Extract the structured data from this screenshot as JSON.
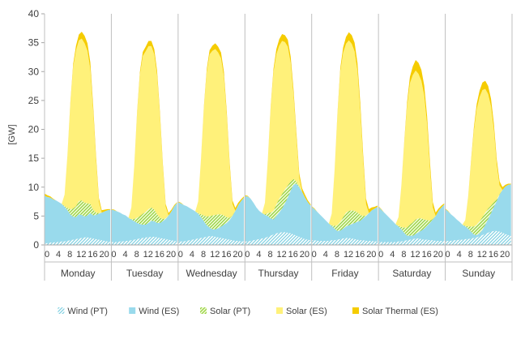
{
  "chart_data": {
    "type": "area",
    "ylabel": "[GW]",
    "ylim": [
      0,
      40
    ],
    "yticks": [
      0,
      5,
      10,
      15,
      20,
      25,
      30,
      35,
      40
    ],
    "x_hour_ticks": [
      "0",
      "4",
      "8",
      "12",
      "16",
      "20"
    ],
    "x_hour_tick_values": [
      0,
      4,
      8,
      12,
      16,
      20
    ],
    "days": [
      "Monday",
      "Tuesday",
      "Wednesday",
      "Thursday",
      "Friday",
      "Saturday",
      "Sunday"
    ],
    "grid": false,
    "stacked": true,
    "legend_position": "bottom",
    "colors": {
      "wind_pt": "#a8e0ea",
      "wind_es": "#99daec",
      "solar_pt": "#c8e88a",
      "solar_es": "#fff17a",
      "solar_thermal_es": "#f5cc00",
      "axis": "#a6a6a6"
    },
    "series": [
      {
        "name": "Wind (PT)",
        "pattern": "hatched",
        "values": [
          [
            0.3,
            0.3,
            0.4,
            0.4,
            0.5,
            0.5,
            0.6,
            0.6,
            0.7,
            0.8,
            0.9,
            1.0,
            1.1,
            1.2,
            1.3,
            1.3,
            1.2,
            1.1,
            1.0,
            0.9,
            0.8,
            0.7,
            0.6,
            0.5
          ],
          [
            0.5,
            0.5,
            0.5,
            0.6,
            0.6,
            0.7,
            0.7,
            0.8,
            0.9,
            1.0,
            1.1,
            1.2,
            1.3,
            1.3,
            1.4,
            1.4,
            1.3,
            1.2,
            1.1,
            1.0,
            0.9,
            0.8,
            0.7,
            0.6
          ],
          [
            0.6,
            0.6,
            0.6,
            0.7,
            0.8,
            0.9,
            1.0,
            1.1,
            1.2,
            1.3,
            1.4,
            1.5,
            1.5,
            1.4,
            1.3,
            1.2,
            1.1,
            1.0,
            0.9,
            0.8,
            0.7,
            0.7,
            0.6,
            0.6
          ],
          [
            0.6,
            0.6,
            0.7,
            0.8,
            0.9,
            1.0,
            1.1,
            1.2,
            1.4,
            1.6,
            1.8,
            2.0,
            2.1,
            2.2,
            2.2,
            2.1,
            2.0,
            1.8,
            1.6,
            1.4,
            1.2,
            1.0,
            0.9,
            0.8
          ],
          [
            0.8,
            0.8,
            0.7,
            0.7,
            0.7,
            0.7,
            0.7,
            0.8,
            0.8,
            0.9,
            1.0,
            1.1,
            1.2,
            1.2,
            1.1,
            1.0,
            0.9,
            0.8,
            0.8,
            0.7,
            0.7,
            0.7,
            0.6,
            0.6
          ],
          [
            0.6,
            0.5,
            0.5,
            0.5,
            0.5,
            0.5,
            0.5,
            0.6,
            0.6,
            0.7,
            0.8,
            0.9,
            1.0,
            1.1,
            1.1,
            1.0,
            0.9,
            0.9,
            0.8,
            0.8,
            0.7,
            0.7,
            0.7,
            0.7
          ],
          [
            0.7,
            0.7,
            0.7,
            0.8,
            0.8,
            0.9,
            0.9,
            1.0,
            1.0,
            1.1,
            1.2,
            1.3,
            1.5,
            1.7,
            1.9,
            2.1,
            2.3,
            2.4,
            2.4,
            2.3,
            2.1,
            1.9,
            1.7,
            1.5
          ]
        ]
      },
      {
        "name": "Wind (ES)",
        "pattern": "solid",
        "values": [
          [
            8.2,
            8.0,
            7.8,
            7.5,
            7.2,
            6.9,
            6.5,
            6.0,
            5.3,
            4.5,
            4.0,
            3.8,
            4.2,
            4.0,
            3.6,
            3.8,
            4.3,
            4.0,
            4.2,
            4.5,
            4.8,
            5.1,
            5.4,
            5.6
          ],
          [
            5.6,
            5.5,
            5.3,
            5.0,
            4.7,
            4.4,
            4.0,
            3.6,
            3.2,
            2.8,
            2.5,
            2.3,
            2.2,
            2.5,
            2.8,
            2.7,
            2.5,
            2.6,
            3.0,
            3.5,
            4.2,
            5.0,
            6.0,
            6.7
          ],
          [
            6.8,
            6.6,
            6.3,
            6.0,
            5.6,
            5.2,
            4.8,
            4.3,
            3.6,
            2.8,
            2.0,
            1.5,
            1.2,
            1.3,
            1.6,
            2.0,
            2.4,
            2.8,
            3.4,
            4.2,
            5.2,
            6.2,
            7.0,
            7.6
          ],
          [
            7.8,
            7.8,
            7.3,
            6.5,
            5.6,
            4.9,
            4.4,
            4.0,
            3.6,
            3.0,
            2.6,
            3.0,
            3.5,
            4.1,
            5.0,
            6.1,
            7.4,
            8.6,
            9.0,
            8.6,
            8.0,
            7.2,
            6.5,
            6.0
          ],
          [
            5.8,
            5.4,
            5.0,
            4.5,
            4.0,
            3.5,
            3.0,
            2.5,
            2.0,
            1.5,
            1.5,
            1.7,
            2.0,
            2.2,
            2.5,
            2.8,
            3.1,
            3.4,
            3.8,
            4.3,
            4.8,
            5.3,
            5.7,
            6.0
          ],
          [
            6.0,
            5.6,
            5.1,
            4.6,
            4.1,
            3.6,
            3.1,
            2.6,
            2.1,
            1.4,
            0.8,
            0.7,
            0.6,
            0.8,
            1.1,
            1.5,
            1.9,
            2.4,
            3.0,
            3.6,
            4.3,
            5.2,
            5.8,
            6.3
          ],
          [
            5.5,
            5.1,
            4.6,
            4.1,
            3.6,
            3.1,
            2.6,
            2.2,
            1.8,
            1.2,
            0.6,
            0.4,
            0.5,
            0.9,
            1.6,
            2.4,
            3.2,
            4.2,
            5.2,
            6.4,
            7.4,
            8.2,
            8.7,
            9.0
          ]
        ]
      },
      {
        "name": "Solar (PT)",
        "pattern": "hatched",
        "values": [
          [
            0,
            0,
            0,
            0,
            0,
            0,
            0,
            0.1,
            0.4,
            0.9,
            1.4,
            1.9,
            2.3,
            2.5,
            2.4,
            2.1,
            1.6,
            1.0,
            0.4,
            0.1,
            0,
            0,
            0,
            0
          ],
          [
            0,
            0,
            0,
            0,
            0,
            0,
            0,
            0.1,
            0.4,
            0.9,
            1.4,
            1.9,
            2.2,
            2.4,
            2.3,
            2.0,
            1.5,
            0.9,
            0.4,
            0.1,
            0,
            0,
            0,
            0
          ],
          [
            0,
            0,
            0,
            0,
            0,
            0,
            0,
            0.1,
            0.5,
            1.0,
            1.5,
            2.0,
            2.4,
            2.5,
            2.4,
            2.1,
            1.6,
            1.0,
            0.4,
            0.1,
            0,
            0,
            0,
            0
          ],
          [
            0,
            0,
            0,
            0,
            0,
            0,
            0,
            0.1,
            0.5,
            1.0,
            1.5,
            2.0,
            2.4,
            2.5,
            2.4,
            2.1,
            1.6,
            1.0,
            0.4,
            0.1,
            0,
            0,
            0,
            0
          ],
          [
            0,
            0,
            0,
            0,
            0,
            0,
            0,
            0.1,
            0.5,
            1.0,
            1.5,
            2.0,
            2.4,
            2.5,
            2.4,
            2.1,
            1.6,
            1.0,
            0.4,
            0.1,
            0,
            0,
            0,
            0
          ],
          [
            0,
            0,
            0,
            0,
            0,
            0,
            0,
            0.1,
            0.4,
            0.9,
            1.4,
            1.9,
            2.3,
            2.5,
            2.4,
            2.1,
            1.6,
            1.0,
            0.4,
            0.1,
            0,
            0,
            0,
            0
          ],
          [
            0,
            0,
            0,
            0,
            0,
            0,
            0,
            0.1,
            0.4,
            0.9,
            1.4,
            1.8,
            2.1,
            2.2,
            2.1,
            1.8,
            1.3,
            0.8,
            0.3,
            0.1,
            0,
            0,
            0,
            0
          ]
        ]
      },
      {
        "name": "Solar (ES)",
        "pattern": "solid",
        "values": [
          [
            0,
            0,
            0,
            0,
            0,
            0,
            0,
            2.0,
            9.0,
            18.0,
            24.5,
            27.0,
            27.8,
            28.0,
            27.6,
            26.4,
            23.3,
            17.0,
            9.0,
            2.0,
            0,
            0,
            0,
            0
          ],
          [
            0,
            0,
            0,
            0,
            0,
            0,
            0,
            2.0,
            9.0,
            18.0,
            24.5,
            27.3,
            27.8,
            28.2,
            27.9,
            26.9,
            24.0,
            17.5,
            9.0,
            2.0,
            0,
            0,
            0,
            0
          ],
          [
            0,
            0,
            0,
            0,
            0,
            0,
            0,
            2.0,
            9.5,
            18.5,
            25.0,
            28.0,
            28.5,
            28.7,
            28.0,
            27.0,
            24.0,
            17.5,
            9.0,
            2.0,
            0,
            0,
            0,
            0
          ],
          [
            0,
            0,
            0,
            0,
            0,
            0,
            0,
            2.0,
            9.0,
            18.0,
            24.0,
            26.0,
            26.5,
            26.5,
            25.5,
            24.0,
            20.5,
            14.5,
            7.5,
            1.5,
            0,
            0,
            0,
            0
          ],
          [
            0,
            0,
            0,
            0,
            0,
            0,
            0,
            2.0,
            9.5,
            19.0,
            26.0,
            28.5,
            29.2,
            29.5,
            28.8,
            27.6,
            24.5,
            18.0,
            9.5,
            2.0,
            0,
            0,
            0,
            0
          ],
          [
            0,
            0,
            0,
            0,
            0,
            0,
            0,
            1.5,
            7.0,
            14.5,
            21.0,
            24.5,
            25.5,
            25.8,
            25.0,
            23.8,
            21.5,
            16.5,
            9.0,
            2.0,
            0,
            0,
            0,
            0
          ],
          [
            0,
            0,
            0,
            0,
            0,
            0,
            0,
            1.0,
            5.0,
            11.0,
            16.5,
            20.0,
            21.5,
            22.0,
            21.4,
            19.8,
            17.2,
            12.5,
            6.0,
            1.5,
            0,
            0,
            0,
            0
          ]
        ]
      },
      {
        "name": "Solar Thermal (ES)",
        "pattern": "solid",
        "values": [
          [
            0.4,
            0.3,
            0.2,
            0.1,
            0,
            0,
            0,
            0,
            0.1,
            0.3,
            0.5,
            0.8,
            1.0,
            1.2,
            1.3,
            1.3,
            1.2,
            1.0,
            0.8,
            0.6,
            0.4,
            0.3,
            0.2,
            0.1
          ],
          [
            0.1,
            0.1,
            0,
            0,
            0,
            0,
            0,
            0,
            0.1,
            0.3,
            0.5,
            0.7,
            0.8,
            0.9,
            0.9,
            0.9,
            0.8,
            0.7,
            0.6,
            0.5,
            0.4,
            0.3,
            0.2,
            0.1
          ],
          [
            0.1,
            0.1,
            0,
            0,
            0,
            0,
            0,
            0,
            0.1,
            0.3,
            0.5,
            0.7,
            0.9,
            1.0,
            1.0,
            1.0,
            0.9,
            0.8,
            0.7,
            0.6,
            0.5,
            0.4,
            0.3,
            0.2
          ],
          [
            0.2,
            0.1,
            0,
            0,
            0,
            0,
            0,
            0,
            0.1,
            0.3,
            0.6,
            0.9,
            1.1,
            1.2,
            1.2,
            1.2,
            1.1,
            1.0,
            0.9,
            0.8,
            0.6,
            0.5,
            0.3,
            0.2
          ],
          [
            0.1,
            0.1,
            0,
            0,
            0,
            0,
            0,
            0,
            0.1,
            0.3,
            0.6,
            0.9,
            1.2,
            1.4,
            1.5,
            1.5,
            1.4,
            1.3,
            1.1,
            0.9,
            0.7,
            0.5,
            0.3,
            0.2
          ],
          [
            0.1,
            0.1,
            0,
            0,
            0,
            0,
            0,
            0,
            0.1,
            0.3,
            0.7,
            1.1,
            1.5,
            1.8,
            1.9,
            1.9,
            1.7,
            1.5,
            1.2,
            0.9,
            0.6,
            0.4,
            0.3,
            0.2
          ],
          [
            0.1,
            0.1,
            0,
            0,
            0,
            0,
            0,
            0,
            0.1,
            0.3,
            0.6,
            0.9,
            1.1,
            1.3,
            1.4,
            1.4,
            1.3,
            1.1,
            0.9,
            0.7,
            0.5,
            0.3,
            0.2,
            0.1
          ]
        ]
      }
    ]
  }
}
